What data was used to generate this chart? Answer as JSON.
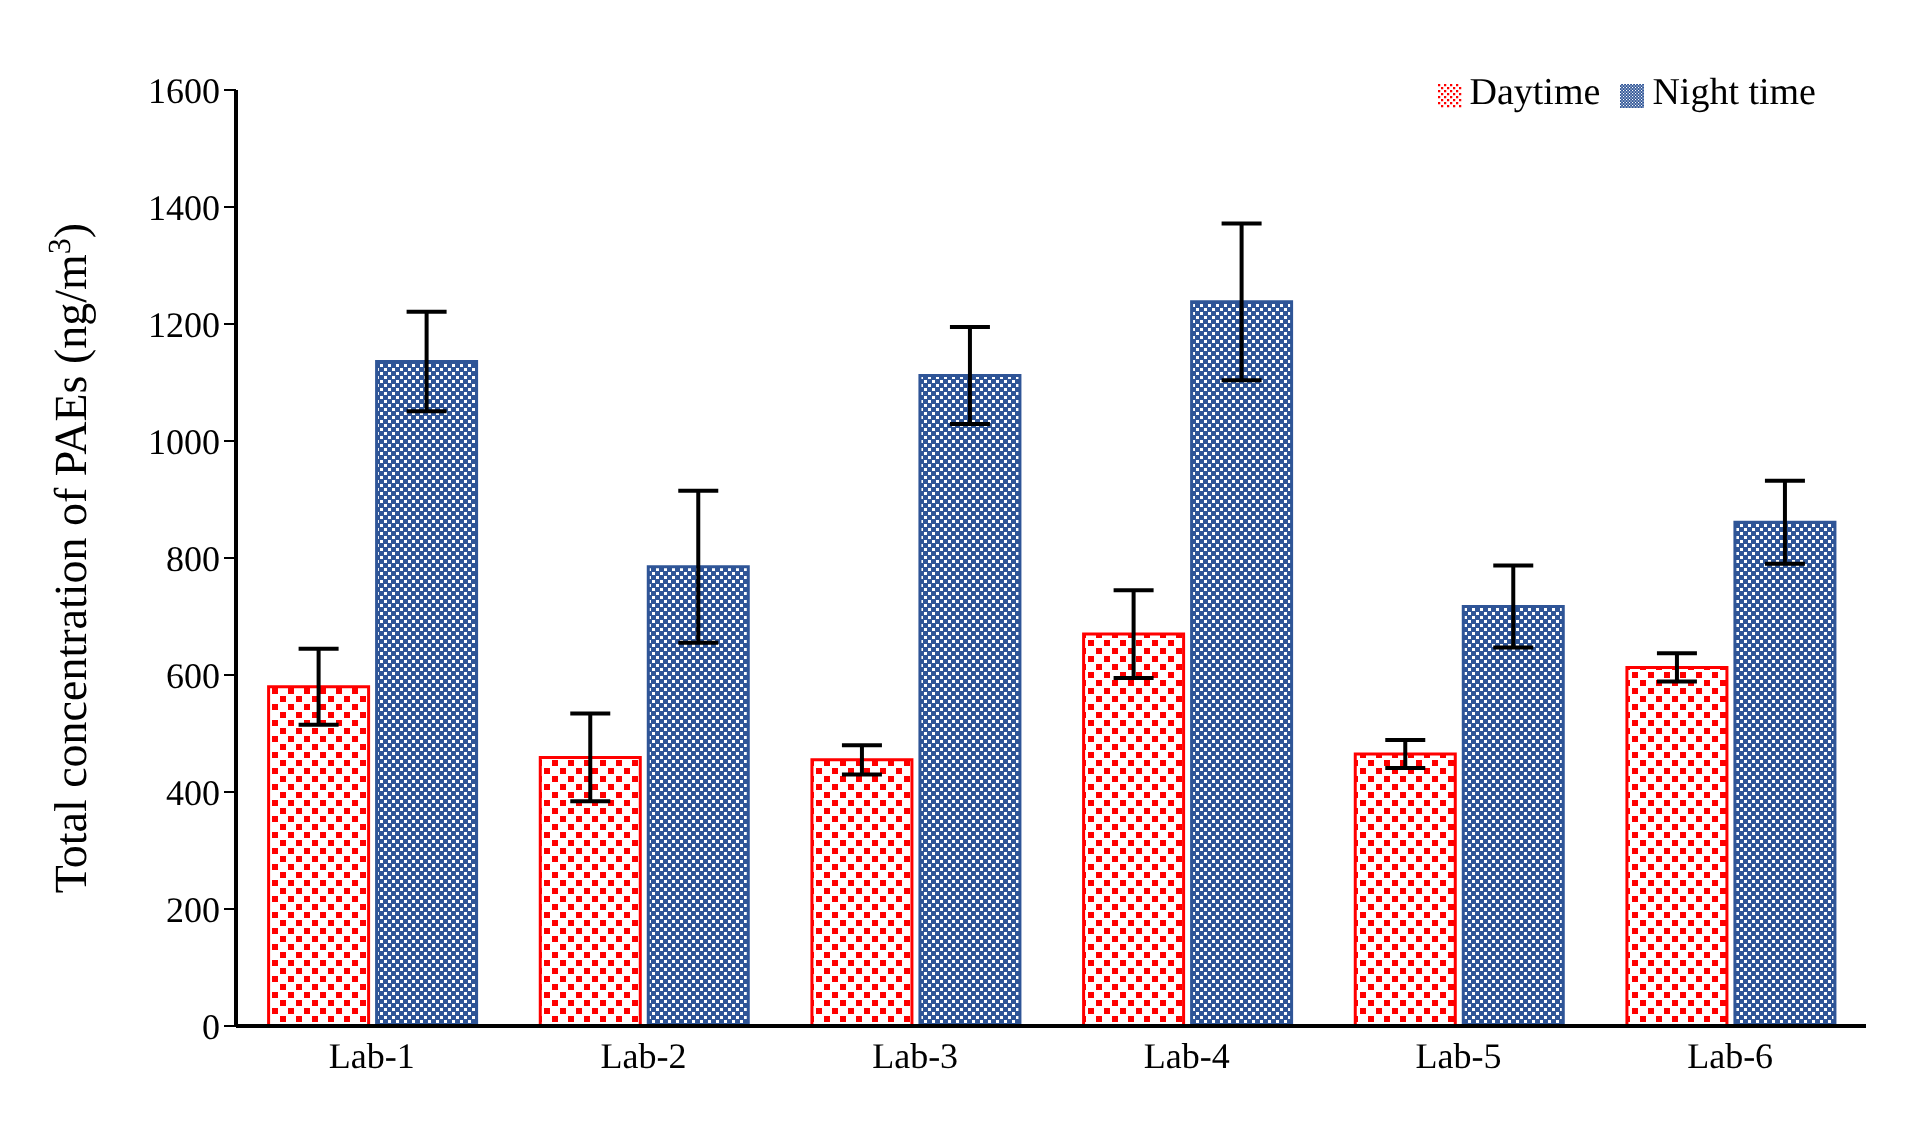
{
  "chart_data": {
    "type": "bar",
    "ylabel": "Total concentration of PAEs (ng/m$^{3}$)",
    "categories": [
      "Lab-1",
      "Lab-2",
      "Lab-3",
      "Lab-4",
      "Lab-5",
      "Lab-6"
    ],
    "series": [
      {
        "name": "Daytime",
        "color": "#ff0000",
        "values": [
          580,
          459,
          455,
          670,
          465,
          613
        ],
        "errors": [
          65,
          75,
          25,
          75,
          24,
          24
        ]
      },
      {
        "name": "Night time",
        "color": "#2f5597",
        "values": [
          1136,
          785,
          1112,
          1238,
          717,
          861
        ],
        "errors": [
          85,
          130,
          83,
          134,
          70,
          71
        ]
      }
    ],
    "ylim": [
      0,
      1600
    ],
    "yticks": [
      0,
      200,
      400,
      600,
      800,
      1000,
      1200,
      1400,
      1600
    ],
    "grid": false,
    "legend": "top right"
  }
}
